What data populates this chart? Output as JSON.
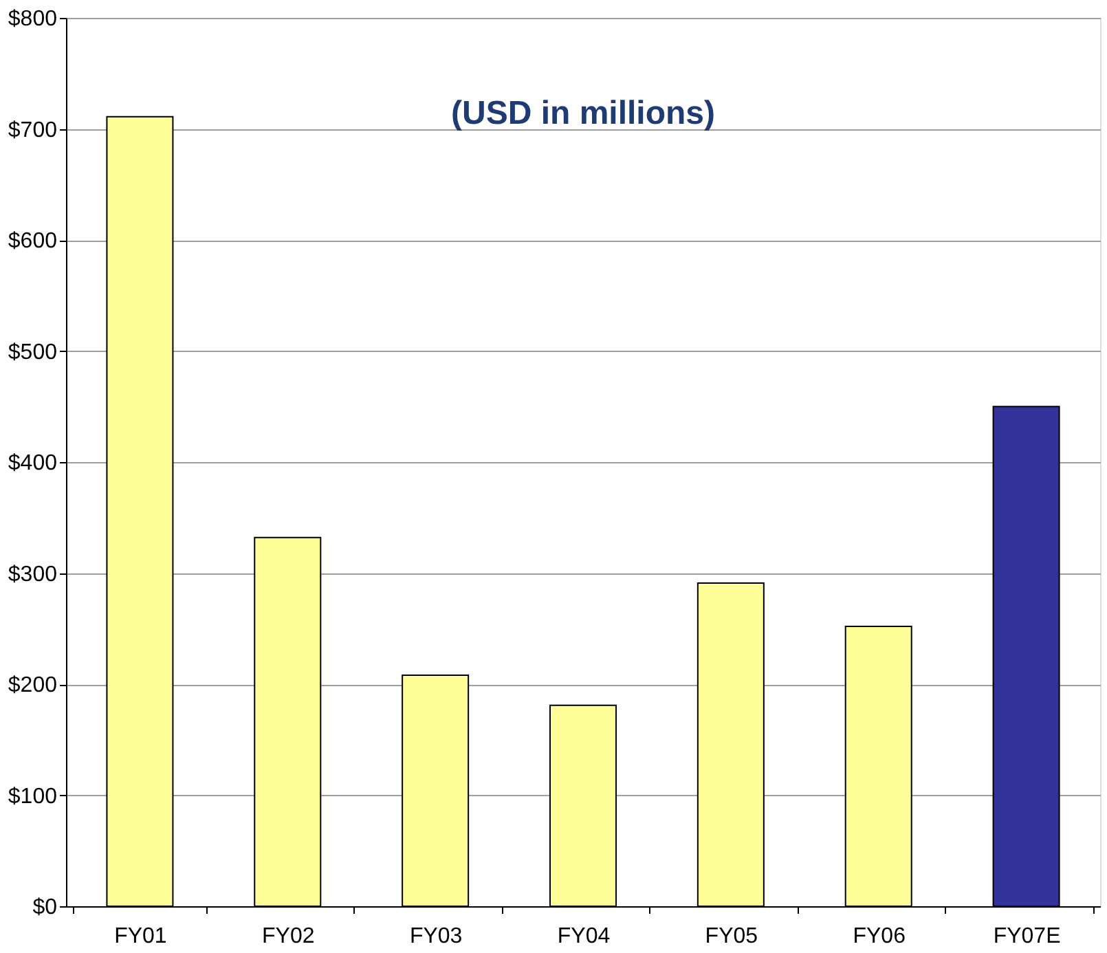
{
  "chart_data": {
    "type": "bar",
    "title": "(USD in millions)",
    "categories": [
      "FY01",
      "FY02",
      "FY03",
      "FY04",
      "FY05",
      "FY06",
      "FY07E"
    ],
    "values": [
      711,
      332,
      208,
      181,
      291,
      252,
      450
    ],
    "colors": [
      "#ffff99",
      "#ffff99",
      "#ffff99",
      "#ffff99",
      "#ffff99",
      "#ffff99",
      "#333399"
    ],
    "ylim": [
      0,
      800
    ],
    "yticks": [
      {
        "value": 0,
        "label": "$0"
      },
      {
        "value": 100,
        "label": "$100"
      },
      {
        "value": 200,
        "label": "$200"
      },
      {
        "value": 300,
        "label": "$300"
      },
      {
        "value": 400,
        "label": "$400"
      },
      {
        "value": 500,
        "label": "$500"
      },
      {
        "value": 600,
        "label": "$600"
      },
      {
        "value": 700,
        "label": "$700"
      },
      {
        "value": 800,
        "label": "$800"
      }
    ],
    "grid": "y"
  }
}
